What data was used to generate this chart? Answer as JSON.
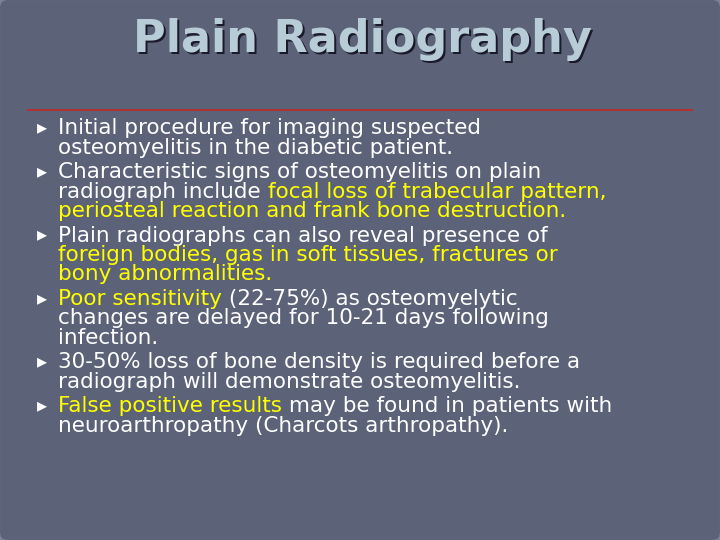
{
  "title": "Plain Radiography",
  "title_color": "#b8ccd8",
  "title_fontsize": 32,
  "background_color": "#5c6378",
  "border_color": "#7a8298",
  "separator_color": "#aa3333",
  "white": "#ffffff",
  "yellow": "#ffff00",
  "bullet_char": "▸",
  "bullets": [
    {
      "lines": [
        [
          {
            "text": "Initial procedure for imaging suspected",
            "color": "#ffffff"
          }
        ],
        [
          {
            "text": "osteomyelitis in the diabetic patient.",
            "color": "#ffffff"
          }
        ]
      ]
    },
    {
      "lines": [
        [
          {
            "text": "Characteristic signs of osteomyelitis on plain",
            "color": "#ffffff"
          }
        ],
        [
          {
            "text": "radiograph include ",
            "color": "#ffffff"
          },
          {
            "text": "focal loss of trabecular pattern,",
            "color": "#ffff00"
          }
        ],
        [
          {
            "text": "periosteal reaction and frank bone destruction.",
            "color": "#ffff00"
          }
        ]
      ]
    },
    {
      "lines": [
        [
          {
            "text": "Plain radiographs can also reveal presence of",
            "color": "#ffffff"
          }
        ],
        [
          {
            "text": "foreign bodies, gas in soft tissues, fractures or",
            "color": "#ffff00"
          }
        ],
        [
          {
            "text": "bony abnormalities.",
            "color": "#ffff00"
          }
        ]
      ]
    },
    {
      "lines": [
        [
          {
            "text": "Poor sensitivity",
            "color": "#ffff00"
          },
          {
            "text": " (22-75%) as osteomyelytic",
            "color": "#ffffff"
          }
        ],
        [
          {
            "text": "changes are delayed for 10-21 days following",
            "color": "#ffffff"
          }
        ],
        [
          {
            "text": "infection.",
            "color": "#ffffff"
          }
        ]
      ]
    },
    {
      "lines": [
        [
          {
            "text": "30-50% loss of bone density is required before a",
            "color": "#ffffff"
          }
        ],
        [
          {
            "text": "radiograph will demonstrate osteomyelitis.",
            "color": "#ffffff"
          }
        ]
      ]
    },
    {
      "lines": [
        [
          {
            "text": "False positive results",
            "color": "#ffff00"
          },
          {
            "text": " may be found in patients with",
            "color": "#ffffff"
          }
        ],
        [
          {
            "text": "neuroarthropathy (Charcots arthropathy).",
            "color": "#ffffff"
          }
        ]
      ]
    }
  ],
  "bullet_fontsize": 15.5,
  "figsize": [
    7.2,
    5.4
  ],
  "dpi": 100
}
